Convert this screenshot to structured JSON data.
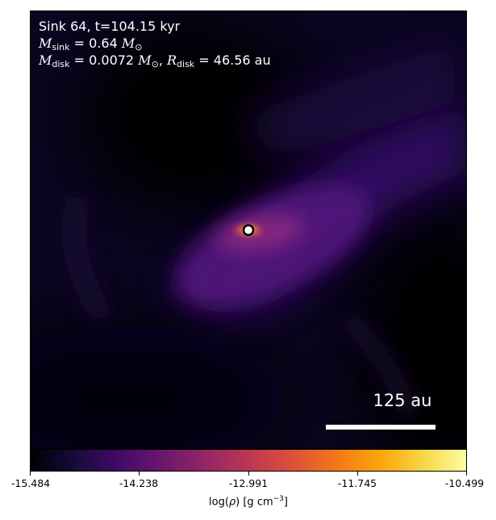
{
  "annotation": {
    "line1": "Sink 64, t=104.15 kyr",
    "m_sink_label": "M",
    "m_sink_sub": "sink",
    "m_sink_value": "= 0.64",
    "m_sun_symbol": "M",
    "m_sun_sub": "⊙",
    "m_disk_label": "M",
    "m_disk_sub": "disk",
    "m_disk_value": "= 0.0072",
    "r_disk_label": "R",
    "r_disk_sub": "disk",
    "r_disk_value": "= 46.56 au"
  },
  "scale_bar": {
    "label": "125 au"
  },
  "colorbar": {
    "colormap": "inferno",
    "ticks": [
      "-15.484",
      "-14.238",
      "-12.991",
      "-11.745",
      "-10.499"
    ],
    "title_prefix": "log(",
    "title_rho": "ρ",
    "title_mid": ") [g cm",
    "title_exp": "−3",
    "title_suffix": "]"
  },
  "sink": {
    "marker_color": "#ffffff",
    "ring_color": "#000000"
  }
}
